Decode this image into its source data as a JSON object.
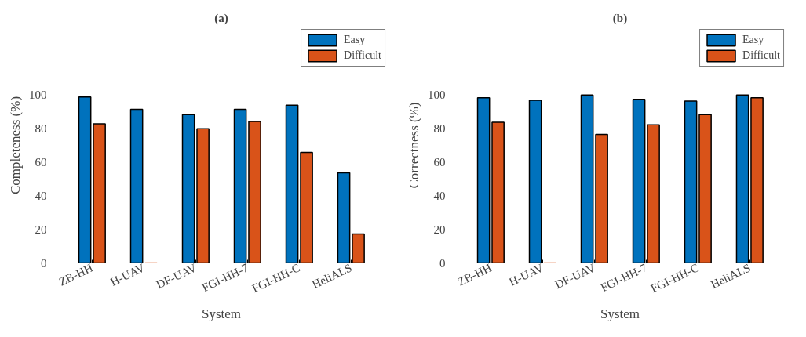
{
  "chart_data": [
    {
      "type": "bar",
      "title": "(a)",
      "xlabel": "System",
      "ylabel": "Completeness (%)",
      "categories": [
        "ZB-HH",
        "H-UAV",
        "DF-UAV",
        "FGI-HH-7",
        "FGI-HH-C",
        "HeliALS"
      ],
      "ylim": [
        0,
        140
      ],
      "yticks": [
        0,
        20,
        40,
        60,
        80,
        100
      ],
      "grid": false,
      "legend": "top right",
      "series": [
        {
          "name": "Easy",
          "color": "#0072bd",
          "values": [
            98.8,
            91.5,
            88.3,
            91.5,
            93.9,
            53.7
          ]
        },
        {
          "name": "Difficult",
          "color": "#d95319",
          "values": [
            82.8,
            0,
            79.9,
            84.2,
            65.8,
            17.3
          ]
        }
      ]
    },
    {
      "type": "bar",
      "title": "(b)",
      "xlabel": "System",
      "ylabel": "Correctness (%)",
      "categories": [
        "ZB-HH",
        "H-UAV",
        "DF-UAV",
        "FGI-HH-7",
        "FGI-HH-C",
        "HeliALS"
      ],
      "ylim": [
        0,
        140
      ],
      "yticks": [
        0,
        20,
        40,
        60,
        80,
        100
      ],
      "grid": false,
      "legend": "top right",
      "series": [
        {
          "name": "Easy",
          "color": "#0072bd",
          "values": [
            98.3,
            96.8,
            100,
            97.4,
            96.4,
            100
          ]
        },
        {
          "name": "Difficult",
          "color": "#d95319",
          "values": [
            83.8,
            0,
            76.5,
            82.3,
            88.3,
            98.3
          ]
        }
      ]
    }
  ]
}
